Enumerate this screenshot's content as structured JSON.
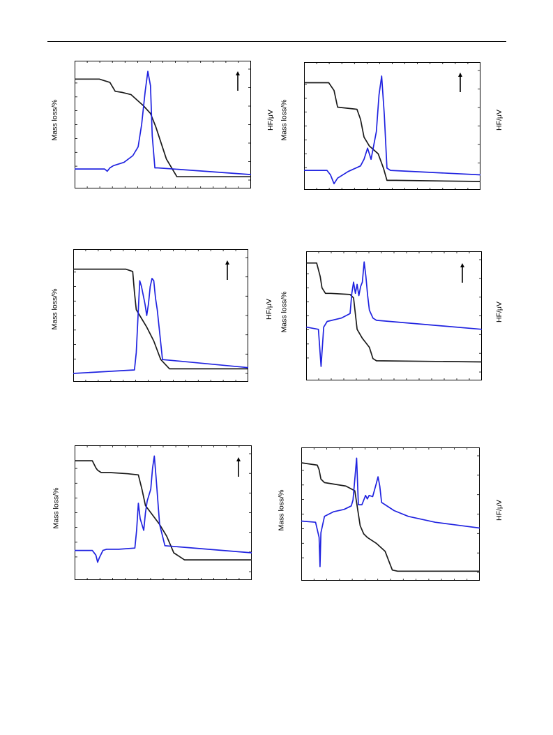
{
  "page": {
    "header_rule": true
  },
  "colors": {
    "mass_curve": "#1a1a1a",
    "hf_curve": "#1f22e0",
    "frame": "#000000"
  },
  "labels": {
    "mass_axis": "Mass loss/%",
    "hf_axis": "HF/μV"
  },
  "chart_data": [
    {
      "type": "line",
      "panel": "top-left",
      "arrow": true,
      "hf_label": true,
      "series": [
        {
          "name": "",
          "role": "mass",
          "x": [
            0,
            14,
            20,
            23,
            27,
            32,
            39,
            43,
            46,
            52,
            58,
            100
          ],
          "y": [
            91,
            91,
            88,
            80,
            79,
            77,
            67,
            60,
            48,
            19,
            3,
            3
          ]
        },
        {
          "name": "",
          "role": "hf",
          "x": [
            0,
            17,
            18.5,
            20,
            22,
            28,
            33,
            36,
            38,
            40,
            41.5,
            43,
            44,
            45.5,
            47,
            100
          ],
          "y": [
            10,
            10,
            8,
            11,
            13,
            16,
            22,
            30,
            50,
            80,
            98,
            85,
            40,
            11,
            11,
            5
          ]
        }
      ]
    },
    {
      "type": "line",
      "panel": "top-right",
      "arrow": true,
      "hf_label": true,
      "series": [
        {
          "name": "",
          "role": "mass",
          "x": [
            0,
            14,
            17,
            19,
            30,
            32,
            34,
            37,
            42,
            45,
            47,
            52,
            100
          ],
          "y": [
            89,
            89,
            82,
            67,
            65,
            56,
            40,
            32,
            25,
            12,
            1,
            1,
            0
          ]
        },
        {
          "name": "",
          "role": "hf",
          "x": [
            0,
            13,
            15,
            17,
            19,
            25,
            32,
            34,
            36,
            38,
            41,
            42.5,
            44,
            45.5,
            47,
            49,
            100
          ],
          "y": [
            10,
            10,
            6,
            -2,
            3,
            9,
            14,
            20,
            30,
            20,
            45,
            78,
            95,
            60,
            12,
            10,
            6
          ]
        }
      ]
    },
    {
      "type": "line",
      "panel": "middle-left",
      "arrow": true,
      "hf_label": true,
      "series": [
        {
          "name": "",
          "role": "mass",
          "x": [
            0,
            30,
            34,
            35,
            36,
            38,
            42,
            46,
            50,
            55,
            60,
            100
          ],
          "y": [
            90,
            90,
            88,
            70,
            55,
            50,
            40,
            28,
            12,
            4,
            4,
            4
          ]
        },
        {
          "name": "",
          "role": "hf",
          "x": [
            0,
            35,
            36,
            38,
            39,
            41,
            42,
            43,
            44,
            45,
            46,
            47,
            48,
            51,
            100
          ],
          "y": [
            0,
            3,
            18,
            80,
            75,
            60,
            50,
            60,
            75,
            82,
            80,
            65,
            55,
            12,
            5
          ]
        }
      ]
    },
    {
      "type": "line",
      "panel": "middle-right",
      "arrow": true,
      "hf_label": true,
      "series": [
        {
          "name": "",
          "role": "mass",
          "x": [
            0,
            6,
            8,
            9,
            11,
            14,
            25,
            27,
            29,
            32,
            34,
            36,
            38,
            40,
            100
          ],
          "y": [
            97,
            97,
            85,
            75,
            70,
            70,
            69,
            66,
            38,
            30,
            26,
            22,
            12,
            10,
            9
          ]
        },
        {
          "name": "",
          "role": "hf",
          "x": [
            0,
            7,
            8.5,
            10,
            12,
            20,
            25,
            26,
            27,
            28,
            29,
            30,
            31,
            32,
            33,
            34,
            35,
            36,
            38,
            40,
            100
          ],
          "y": [
            40,
            38,
            5,
            40,
            45,
            48,
            52,
            70,
            80,
            70,
            78,
            68,
            76,
            80,
            98,
            85,
            68,
            55,
            48,
            46,
            38
          ]
        }
      ]
    },
    {
      "type": "line",
      "panel": "bottom-left",
      "arrow": true,
      "hf_label": false,
      "series": [
        {
          "name": "",
          "role": "mass",
          "x": [
            0,
            10,
            12,
            13,
            15,
            20,
            30,
            36,
            38,
            40,
            44,
            48,
            52,
            56,
            62,
            100
          ],
          "y": [
            94,
            94,
            88,
            86,
            84,
            84,
            83,
            82,
            70,
            56,
            48,
            40,
            30,
            16,
            10,
            10
          ]
        },
        {
          "name": "",
          "role": "hf",
          "x": [
            0,
            10,
            12,
            13,
            14,
            16,
            18,
            25,
            34,
            35,
            36,
            37,
            39,
            40,
            41,
            43,
            44,
            45,
            46,
            48,
            51,
            100
          ],
          "y": [
            18,
            18,
            14,
            8,
            12,
            18,
            19,
            19,
            20,
            35,
            58,
            45,
            35,
            50,
            60,
            70,
            88,
            98,
            80,
            40,
            22,
            16
          ]
        }
      ]
    },
    {
      "type": "line",
      "panel": "bottom-right",
      "arrow": false,
      "hf_label": true,
      "series": [
        {
          "name": "",
          "role": "mass",
          "x": [
            0,
            9,
            10,
            11,
            13,
            25,
            30,
            33,
            35,
            37,
            42,
            47,
            49,
            51,
            54,
            60,
            100
          ],
          "y": [
            94,
            92,
            88,
            80,
            77,
            74,
            70,
            40,
            33,
            30,
            25,
            18,
            10,
            2,
            1,
            1,
            1
          ]
        },
        {
          "name": "",
          "role": "hf",
          "x": [
            0,
            8,
            10,
            10.5,
            11,
            13,
            18,
            24,
            28,
            29,
            30,
            31,
            32,
            34,
            35,
            36,
            37,
            38,
            40,
            42,
            43,
            44,
            45,
            47,
            52,
            60,
            75,
            90,
            100
          ],
          "y": [
            44,
            43,
            30,
            5,
            34,
            48,
            52,
            54,
            57,
            62,
            80,
            98,
            58,
            58,
            62,
            66,
            63,
            66,
            65,
            76,
            82,
            74,
            60,
            58,
            53,
            48,
            43,
            40,
            38
          ]
        }
      ]
    }
  ]
}
